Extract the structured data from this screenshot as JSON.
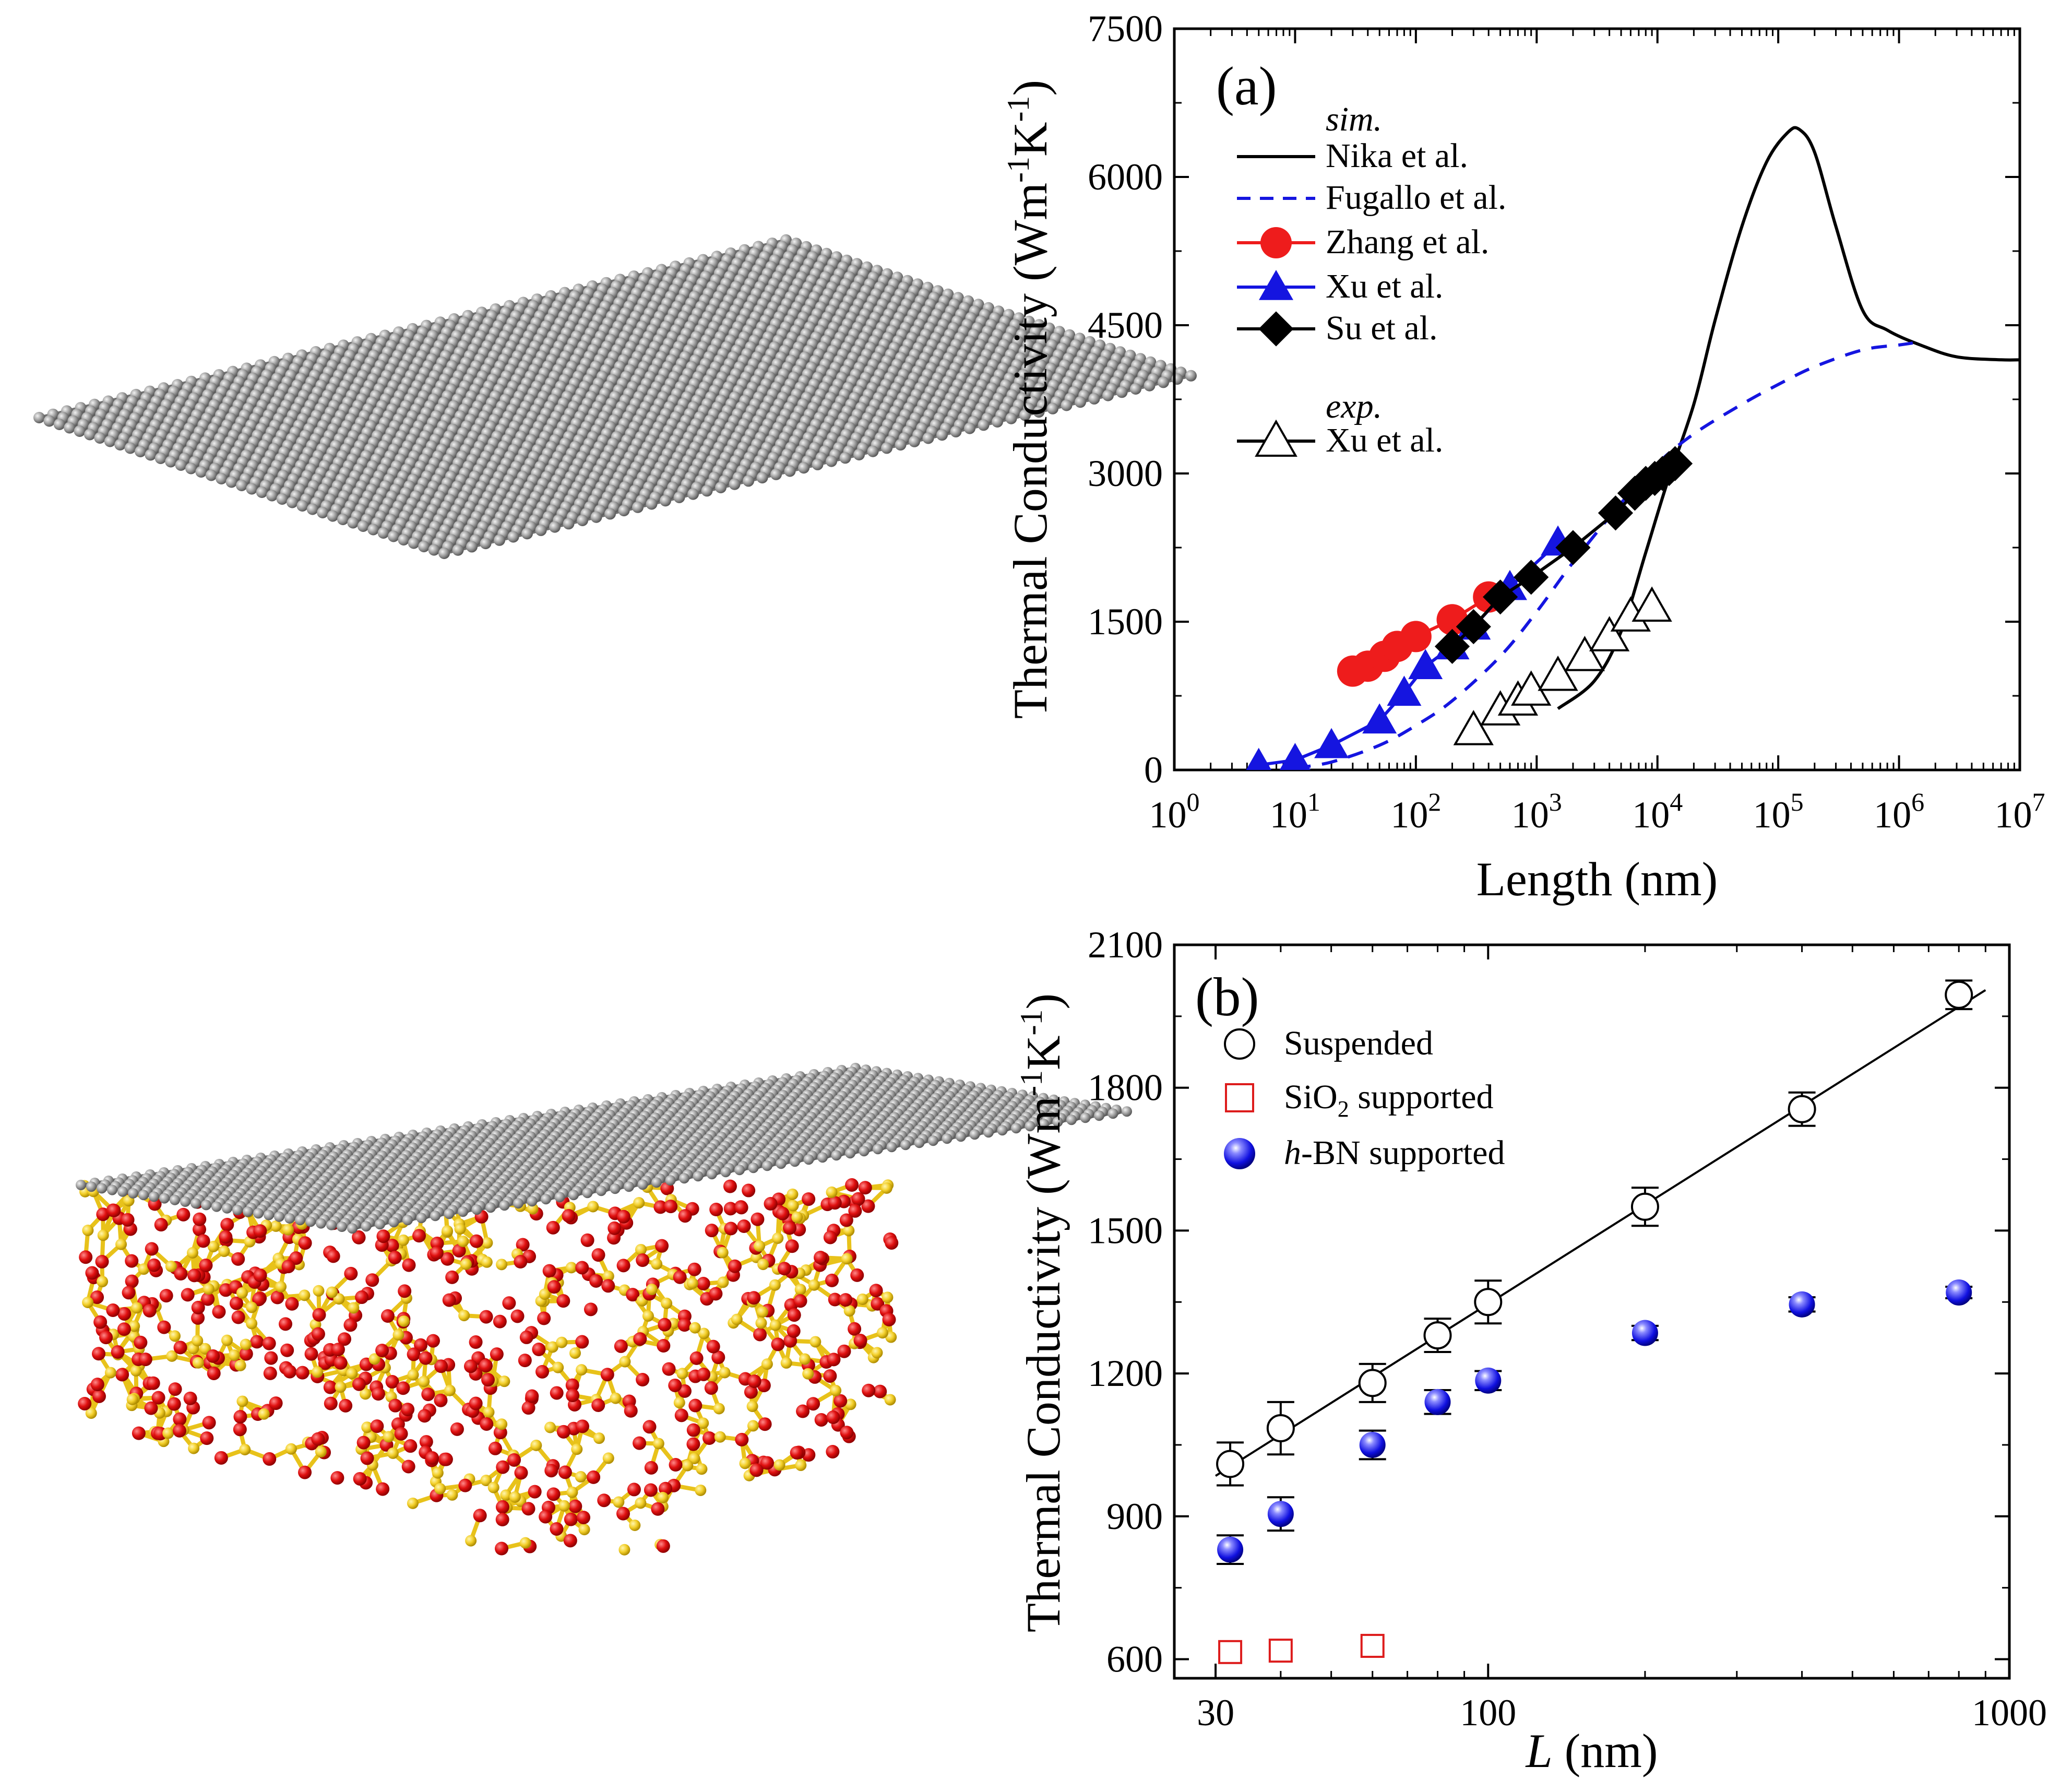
{
  "chart_data": [
    {
      "panel": "(a)",
      "type": "line",
      "x_scale": "log",
      "xlabel": "Length (nm)",
      "ylabel": "Thermal Conductivity (Wm-1K-1)",
      "ylabel_parts": {
        "main": "Thermal Conductivity (Wm",
        "sup1": "-1",
        "mid": "K",
        "sup2": "-1",
        "end": ")"
      },
      "xlim": [
        1,
        10000000
      ],
      "ylim": [
        0,
        7500
      ],
      "x_ticks": [
        {
          "value": 1,
          "base": "10",
          "exp": "0"
        },
        {
          "value": 10,
          "base": "10",
          "exp": "1"
        },
        {
          "value": 100,
          "base": "10",
          "exp": "2"
        },
        {
          "value": 1000,
          "base": "10",
          "exp": "3"
        },
        {
          "value": 10000,
          "base": "10",
          "exp": "4"
        },
        {
          "value": 100000,
          "base": "10",
          "exp": "5"
        },
        {
          "value": 1000000,
          "base": "10",
          "exp": "6"
        },
        {
          "value": 10000000,
          "base": "10",
          "exp": "7"
        }
      ],
      "y_ticks": [
        0,
        1500,
        3000,
        4500,
        6000,
        7500
      ],
      "legend": {
        "position": "top-left",
        "sim_header": "sim.",
        "exp_header": "exp."
      },
      "series": [
        {
          "name": "Nika et al.",
          "group": "sim",
          "style": "solid-line",
          "color": "#000000",
          "x": [
            1500,
            3000,
            5000,
            8000,
            12000,
            20000,
            30000,
            50000,
            80000,
            120000,
            150000,
            200000,
            300000,
            500000,
            800000,
            1500000,
            3000000,
            7000000,
            10000000
          ],
          "y": [
            620,
            900,
            1400,
            2200,
            2900,
            3700,
            4550,
            5500,
            6150,
            6450,
            6480,
            6250,
            5500,
            4650,
            4450,
            4300,
            4180,
            4150,
            4150
          ]
        },
        {
          "name": "Fugallo et al.",
          "group": "sim",
          "style": "dashed-line",
          "color": "#1515e0",
          "x": [
            10,
            20,
            50,
            100,
            200,
            500,
            1000,
            2000,
            5000,
            10000,
            20000,
            50000,
            100000,
            200000,
            500000,
            1000000,
            1300000
          ],
          "y": [
            20,
            80,
            250,
            450,
            700,
            1150,
            1600,
            2100,
            2700,
            3100,
            3400,
            3700,
            3900,
            4080,
            4250,
            4300,
            4320
          ]
        },
        {
          "name": "Zhang et al.",
          "group": "sim",
          "style": "line-circle",
          "color": "#ee1c1c",
          "x": [
            30,
            40,
            55,
            70,
            100,
            200,
            400
          ],
          "y": [
            1000,
            1050,
            1150,
            1250,
            1350,
            1520,
            1750
          ]
        },
        {
          "name": "Xu et al.",
          "group": "sim",
          "style": "line-triangle",
          "color": "#1515e0",
          "x": [
            5,
            10,
            20,
            50,
            80,
            120,
            200,
            300,
            600,
            1500
          ],
          "y": [
            50,
            100,
            250,
            500,
            780,
            1050,
            1250,
            1450,
            1850,
            2300
          ]
        },
        {
          "name": "Su et al.",
          "group": "sim",
          "style": "line-diamond",
          "color": "#000000",
          "x": [
            200,
            300,
            500,
            900,
            2000,
            4500,
            6500,
            8000,
            9500,
            11000,
            12500,
            14000
          ],
          "y": [
            1250,
            1450,
            1750,
            1950,
            2250,
            2600,
            2800,
            2900,
            2950,
            3000,
            3050,
            3100
          ]
        },
        {
          "name": "Xu et al.",
          "group": "exp",
          "style": "hollow-triangle",
          "color": "#000000",
          "x": [
            300,
            500,
            700,
            900,
            1500,
            2500,
            4000,
            6000,
            9000
          ],
          "y": [
            400,
            600,
            700,
            800,
            950,
            1150,
            1350,
            1550,
            1650
          ]
        }
      ]
    },
    {
      "panel": "(b)",
      "type": "scatter",
      "x_scale": "log",
      "xlabel": "L (nm)",
      "xlabel_parts": {
        "italic": "L",
        "rest": " (nm)"
      },
      "ylabel": "Thermal Conductivity (Wm-1K-1)",
      "ylabel_parts": {
        "main": "Thermal Conductivity (Wm",
        "sup1": "-1",
        "mid": "K",
        "sup2": "-1",
        "end": ")"
      },
      "xlim": [
        25,
        1000
      ],
      "ylim": [
        560,
        2100
      ],
      "x_ticks": [
        "30",
        "100",
        "1000"
      ],
      "x_tick_values": [
        30,
        100,
        1000
      ],
      "y_ticks": [
        600,
        900,
        1200,
        1500,
        1800,
        2100
      ],
      "legend": {
        "position": "top-left"
      },
      "series": [
        {
          "name": "Suspended",
          "marker": "hollow-circle",
          "color": "#000000",
          "x": [
            32,
            40,
            60,
            80,
            100,
            200,
            400,
            800
          ],
          "y": [
            1010,
            1085,
            1180,
            1280,
            1350,
            1550,
            1755,
            1995
          ],
          "err": [
            45,
            55,
            40,
            35,
            45,
            40,
            35,
            30
          ]
        },
        {
          "name": "SiO2 supported",
          "name_parts": {
            "pre": "SiO",
            "sub": "2",
            "post": " supported"
          },
          "marker": "hollow-square",
          "color": "#dd1c1c",
          "x": [
            32,
            40,
            60
          ],
          "y": [
            615,
            618,
            628
          ]
        },
        {
          "name": "h-BN supported",
          "name_parts": {
            "italic": "h",
            "rest": "-BN supported"
          },
          "marker": "sphere",
          "color": "#1515e0",
          "x": [
            32,
            40,
            60,
            80,
            100,
            200,
            400,
            800
          ],
          "y": [
            830,
            905,
            1050,
            1140,
            1185,
            1285,
            1345,
            1370
          ],
          "err": [
            30,
            35,
            30,
            25,
            20,
            15,
            15,
            12
          ]
        }
      ],
      "fit_line": {
        "x": [
          30,
          900
        ],
        "y": [
          985,
          2005
        ]
      }
    }
  ],
  "images": [
    {
      "name": "suspended-graphene-structure",
      "description_label": "graphene sheet"
    },
    {
      "name": "supported-graphene-structure",
      "description_label": "graphene on SiO2 substrate"
    }
  ]
}
